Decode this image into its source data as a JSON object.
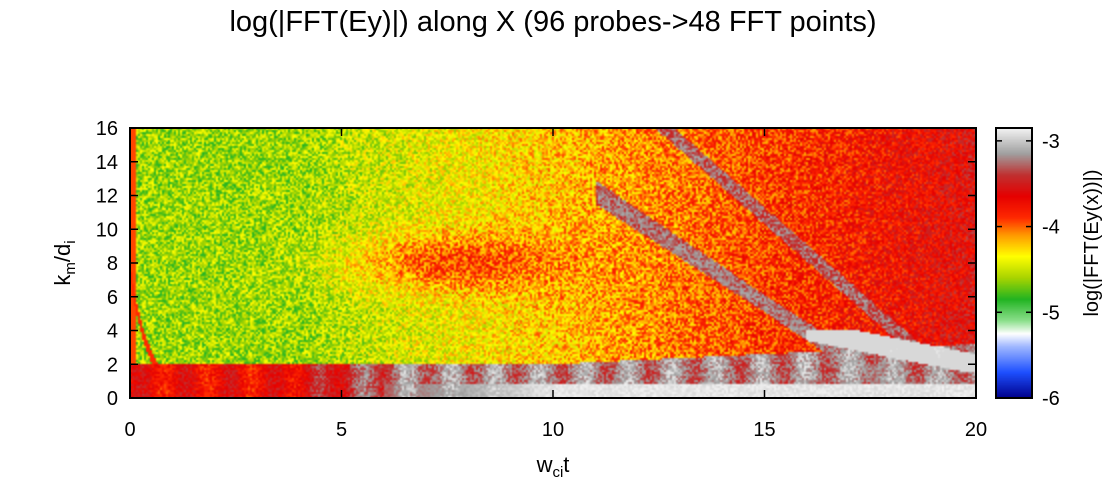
{
  "chart_data": {
    "type": "heatmap",
    "title": "log(|FFT(Ey)|) along X (96 probes->48 FFT points)",
    "xlabel": {
      "main": "w",
      "sub": "ci",
      "post": "t"
    },
    "ylabel": {
      "main": "k",
      "sub": "m",
      "mid": "/d",
      "sub2": "i"
    },
    "colorbar_label": "log(|FFT(Ey(x))|)",
    "xlim": [
      0,
      20
    ],
    "ylim": [
      0,
      16
    ],
    "zlim": [
      -6,
      -2.85
    ],
    "x_ticks": [
      "0",
      "5",
      "10",
      "15",
      "20"
    ],
    "y_ticks": [
      "0",
      "2",
      "4",
      "6",
      "8",
      "10",
      "12",
      "14",
      "16"
    ],
    "colorbar_ticks": [
      "-6",
      "-5",
      "-4",
      "-3"
    ],
    "colorscale": [
      [
        -6.0,
        "#00008b"
      ],
      [
        -5.7,
        "#1e50ff"
      ],
      [
        -5.4,
        "#a0b8ff"
      ],
      [
        -5.25,
        "#ffffff"
      ],
      [
        -5.1,
        "#8ce08c"
      ],
      [
        -4.85,
        "#22b422"
      ],
      [
        -4.6,
        "#a8d400"
      ],
      [
        -4.35,
        "#ffff00"
      ],
      [
        -4.1,
        "#ff9900"
      ],
      [
        -3.9,
        "#ff2a00"
      ],
      [
        -3.65,
        "#e60000"
      ],
      [
        -3.4,
        "#c03030"
      ],
      [
        -3.15,
        "#a0a0a0"
      ],
      [
        -2.85,
        "#f4f4f4"
      ]
    ],
    "features": {
      "background_level_early": -4.6,
      "background_level_late": -3.85,
      "low_k_band_level": -3.2,
      "k0_band_level": -2.9,
      "early_arc_level": -3.9,
      "diagonal_branches_level": -3.3
    }
  }
}
